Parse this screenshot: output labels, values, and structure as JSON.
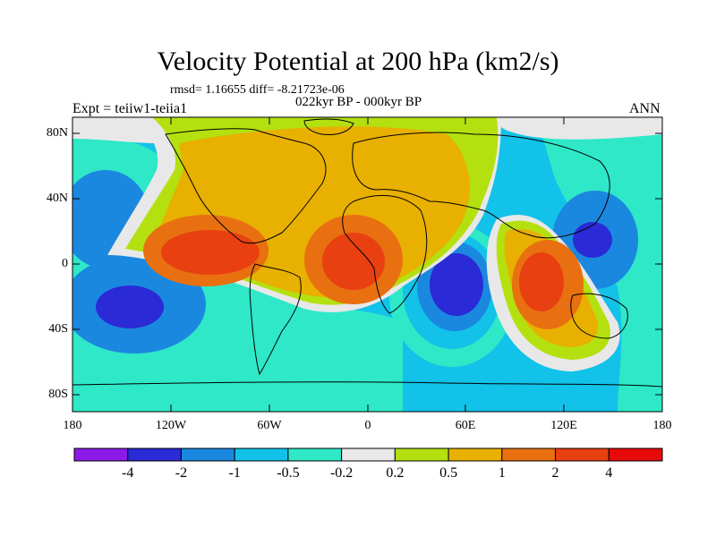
{
  "title": "Velocity Potential at 200 hPa (km2/s)",
  "stats": "rmsd= 1.16655 diff= -8.21723e-06",
  "period": "022kyr BP - 000kyr BP",
  "experiment": "Expt = teiiw1-teiia1",
  "season": "ANN",
  "map": {
    "projection": "cylindrical-equidistant",
    "lon_range": [
      -180,
      180
    ],
    "lat_range": [
      -90,
      90
    ],
    "x_ticks": [
      "180",
      "120W",
      "60W",
      "0",
      "60E",
      "120E",
      "180"
    ],
    "y_ticks": [
      "80N",
      "40N",
      "0",
      "40S",
      "80S"
    ],
    "coastlines": true
  },
  "colorbar": {
    "levels": [
      "-4",
      "-2",
      "-1",
      "-0.5",
      "-0.2",
      "0.2",
      "0.5",
      "1",
      "2",
      "4"
    ],
    "colors": [
      "#8c1ae8",
      "#2a2ad6",
      "#1b88e0",
      "#12c2e8",
      "#2ee8c8",
      "#e8e8e8",
      "#b4e010",
      "#e8b000",
      "#e87010",
      "#e84010",
      "#e80a0a"
    ]
  },
  "colors": {
    "neg_strong": "#2a2ad6",
    "neg_mid": "#1b88e0",
    "neg_weak": "#12c2e8",
    "neg_vweak": "#2ee8c8",
    "neutral": "#e8e8e8",
    "pos_vweak": "#b4e010",
    "pos_weak": "#e8b000",
    "pos_mid": "#e87010",
    "pos_strong": "#e84010"
  }
}
